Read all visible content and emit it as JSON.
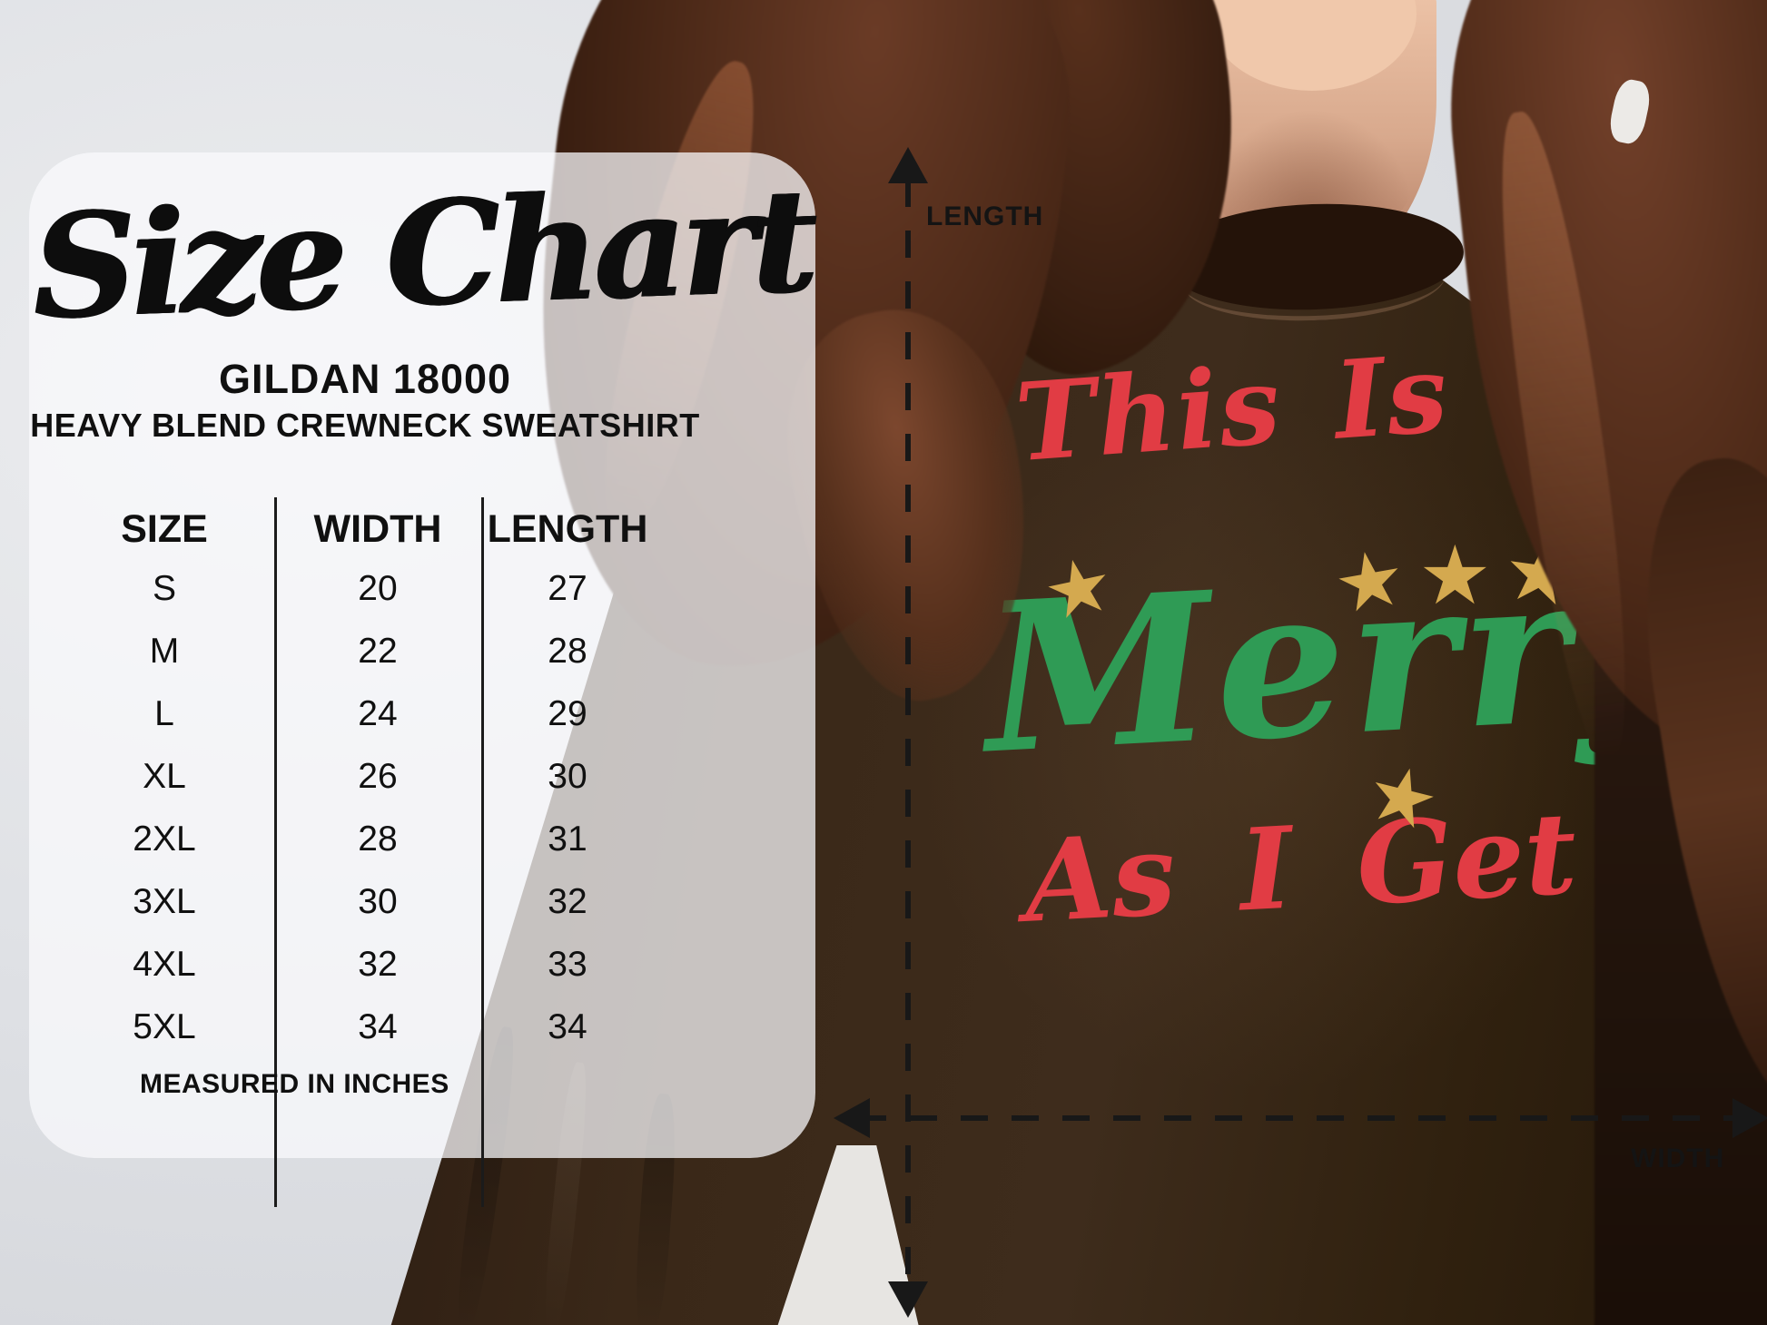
{
  "size_chart": {
    "title": "Size Chart",
    "brand_line": "GILDAN 18000",
    "product_line": "HEAVY BLEND CREWNECK SWEATSHIRT",
    "columns": [
      "SIZE",
      "WIDTH",
      "LENGTH"
    ],
    "rows": [
      {
        "size": "S",
        "width": "20",
        "length": "27"
      },
      {
        "size": "M",
        "width": "22",
        "length": "28"
      },
      {
        "size": "L",
        "width": "24",
        "length": "29"
      },
      {
        "size": "XL",
        "width": "26",
        "length": "30"
      },
      {
        "size": "2XL",
        "width": "28",
        "length": "31"
      },
      {
        "size": "3XL",
        "width": "30",
        "length": "32"
      },
      {
        "size": "4XL",
        "width": "32",
        "length": "33"
      },
      {
        "size": "5XL",
        "width": "34",
        "length": "34"
      }
    ],
    "note": "MEASURED IN INCHES"
  },
  "measurement_overlay": {
    "vertical_label": "LENGTH",
    "horizontal_label": "WIDTH"
  },
  "shirt_design": {
    "line1": "This Is As",
    "line2": "Merry",
    "line3": "As I Get",
    "star": "★",
    "colors": {
      "red": "#e13c44",
      "green": "#2f9b55",
      "gold": "#d4a94f"
    }
  },
  "colors": {
    "card_background": "#faf9fc",
    "wall_background": "#dfe1e5",
    "sweatshirt_brown": "#3a2818",
    "overlay_line": "#181818",
    "text": "#101010"
  },
  "chart_data": {
    "type": "table",
    "title": "Size Chart",
    "subtitle": "GILDAN 18000 HEAVY BLEND CREWNECK SWEATSHIRT",
    "columns": [
      "SIZE",
      "WIDTH",
      "LENGTH"
    ],
    "rows": [
      [
        "S",
        20,
        27
      ],
      [
        "M",
        22,
        28
      ],
      [
        "L",
        24,
        29
      ],
      [
        "XL",
        26,
        30
      ],
      [
        "2XL",
        28,
        31
      ],
      [
        "3XL",
        30,
        32
      ],
      [
        "4XL",
        32,
        33
      ],
      [
        "5XL",
        34,
        34
      ]
    ],
    "units": "inches"
  }
}
